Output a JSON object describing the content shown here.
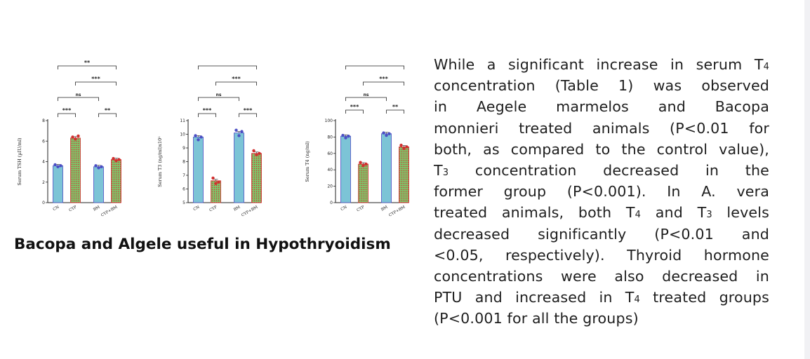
{
  "caption": "Bacopa and Algele useful in Hypothryoidism",
  "paragraph": {
    "lines": [
      [
        {
          "t": "While a significant increase in serum T"
        },
        {
          "t": "4",
          "sub": true
        }
      ],
      [
        {
          "t": "concentration (Table 1) was observed"
        }
      ],
      [
        {
          "t": "in   Aegele   marmelos   and   Bacopa"
        }
      ],
      [
        {
          "t": "monnieri treated animals (P<0.01 for"
        }
      ],
      [
        {
          "t": "both, as compared to the control value),"
        }
      ],
      [
        {
          "t": "T"
        },
        {
          "t": "3",
          "sub": true
        },
        {
          "t": " concentration decreased in the"
        }
      ],
      [
        {
          "t": "former group (P<0.001). In A. vera"
        }
      ],
      [
        {
          "t": "treated animals, both T"
        },
        {
          "t": "4",
          "sub": true
        },
        {
          "t": " and T"
        },
        {
          "t": "3",
          "sub": true
        },
        {
          "t": " levels"
        }
      ],
      [
        {
          "t": "decreased significantly (P<0.01 and"
        }
      ],
      [
        {
          "t": "<0.05, respectively). Thyroid hormone"
        }
      ],
      [
        {
          "t": "concentrations were also decreased in"
        }
      ],
      [
        {
          "t": "PTU and increased in T"
        },
        {
          "t": "4",
          "sub": true
        },
        {
          "t": " treated groups"
        }
      ],
      [
        {
          "t": "(P<0.001 for all the groups)"
        }
      ]
    ]
  },
  "colors": {
    "control_fill": "#7cc4d6",
    "treated_fill": "#7fc46a",
    "treated_pattern": "#d22f2f",
    "control_dots": "#4b4ec4",
    "treated_dots": "#d22f2f",
    "axis": "#222222"
  },
  "chart_data": [
    {
      "type": "bar",
      "ylabel": "Serum TSH (µIU/ml)",
      "categories": [
        "CN",
        "CYP",
        "BM",
        "CYP+BM"
      ],
      "values": [
        3.6,
        6.3,
        3.5,
        4.2
      ],
      "points": [
        [
          3.7,
          3.5,
          3.6
        ],
        [
          6.4,
          6.2,
          6.5
        ],
        [
          3.6,
          3.4,
          3.5
        ],
        [
          4.3,
          4.1,
          4.2
        ]
      ],
      "ylim": [
        0,
        8
      ],
      "yticks": [
        "0",
        "2",
        "4",
        "6",
        "8"
      ],
      "comparisons": [
        {
          "from": 0,
          "to": 1,
          "label": "***"
        },
        {
          "from": 2,
          "to": 3,
          "label": "**"
        },
        {
          "from": 0,
          "to": 2,
          "label": "ns"
        },
        {
          "from": 1,
          "to": 3,
          "label": "***"
        },
        {
          "from": 0,
          "to": 3,
          "label": "**"
        }
      ]
    },
    {
      "type": "bar",
      "ylabel": "Serum T3 (ng/ml)x10¹",
      "categories": [
        "CN",
        "CYP",
        "BM",
        "CYP+BM"
      ],
      "values": [
        9.8,
        6.6,
        10.1,
        8.6
      ],
      "points": [
        [
          9.9,
          9.6,
          9.8
        ],
        [
          6.8,
          6.4,
          6.5
        ],
        [
          10.3,
          9.9,
          10.2
        ],
        [
          8.8,
          8.5,
          8.6
        ]
      ],
      "ylim": [
        5,
        11
      ],
      "yticks": [
        "5",
        "6",
        "7",
        "8",
        "9",
        "10",
        "11"
      ],
      "comparisons": [
        {
          "from": 0,
          "to": 1,
          "label": "***"
        },
        {
          "from": 2,
          "to": 3,
          "label": "***"
        },
        {
          "from": 0,
          "to": 2,
          "label": "ns"
        },
        {
          "from": 1,
          "to": 3,
          "label": "***"
        },
        {
          "from": 0,
          "to": 3,
          "label": ""
        }
      ]
    },
    {
      "type": "bar",
      "ylabel": "Serum T4 (ng/ml)",
      "categories": [
        "CN",
        "CYP",
        "BM",
        "CYP+BM"
      ],
      "values": [
        81,
        47,
        84,
        68
      ],
      "points": [
        [
          82,
          79,
          81
        ],
        [
          49,
          45,
          47
        ],
        [
          85,
          82,
          84
        ],
        [
          70,
          66,
          68
        ]
      ],
      "ylim": [
        0,
        100
      ],
      "yticks": [
        "0",
        "20",
        "40",
        "60",
        "80",
        "100"
      ],
      "comparisons": [
        {
          "from": 0,
          "to": 1,
          "label": "***"
        },
        {
          "from": 2,
          "to": 3,
          "label": "**"
        },
        {
          "from": 0,
          "to": 2,
          "label": "ns"
        },
        {
          "from": 1,
          "to": 3,
          "label": "***"
        },
        {
          "from": 0,
          "to": 3,
          "label": ""
        }
      ]
    }
  ]
}
